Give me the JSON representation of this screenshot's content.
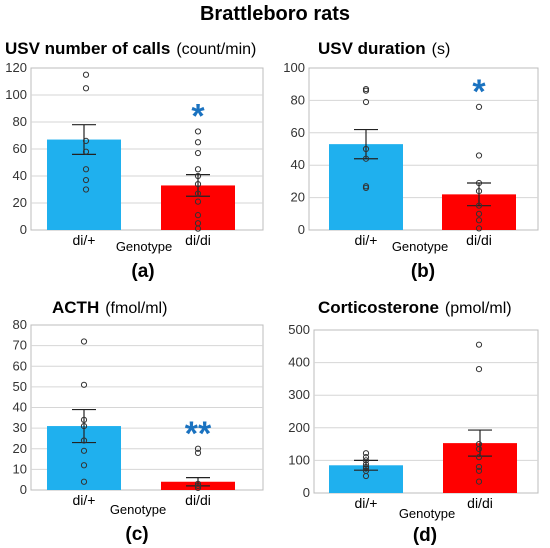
{
  "title": "Brattleboro rats",
  "colors": {
    "control": "#1fb0ee",
    "knockout": "#ff0000",
    "significance": "#1a72c0",
    "grid": "#d6d6d6"
  },
  "chart_data": [
    {
      "type": "bar",
      "panel": "(a)",
      "title": "USV number of calls",
      "unit": "(count/min)",
      "xlabel": "Genotype",
      "categories": [
        "di/+",
        "di/di"
      ],
      "values": [
        67,
        33
      ],
      "sem": [
        11,
        8
      ],
      "points": [
        [
          30,
          37,
          45,
          58,
          66,
          105,
          115
        ],
        [
          1,
          5,
          11,
          21,
          27,
          34,
          40,
          45,
          57,
          65,
          73
        ]
      ],
      "ylim": [
        0,
        120
      ],
      "yticks": [
        0,
        20,
        40,
        60,
        80,
        100,
        120
      ],
      "significance": [
        "",
        "*"
      ],
      "grid": true
    },
    {
      "type": "bar",
      "panel": "(b)",
      "title": "USV duration",
      "unit": "(s)",
      "xlabel": "Genotype",
      "categories": [
        "di/+",
        "di/di"
      ],
      "values": [
        53,
        22
      ],
      "sem": [
        9,
        7
      ],
      "points": [
        [
          26,
          27,
          44,
          50,
          79,
          86,
          87
        ],
        [
          1,
          6,
          10,
          15,
          24,
          29,
          46,
          76
        ]
      ],
      "ylim": [
        0,
        100
      ],
      "yticks": [
        0,
        20,
        40,
        60,
        80,
        100
      ],
      "significance": [
        "",
        "*"
      ],
      "grid": true
    },
    {
      "type": "bar",
      "panel": "(c)",
      "title": "ACTH",
      "unit": "(fmol/ml)",
      "xlabel": "Genotype",
      "categories": [
        "di/+",
        "di/di"
      ],
      "values": [
        31,
        4
      ],
      "sem": [
        8,
        2
      ],
      "points": [
        [
          4,
          12,
          19,
          24,
          31,
          34,
          51,
          72
        ],
        [
          1,
          2,
          3,
          18,
          20
        ]
      ],
      "ylim": [
        0,
        80
      ],
      "yticks": [
        0,
        10,
        20,
        30,
        40,
        50,
        60,
        70,
        80
      ],
      "significance": [
        "",
        "**"
      ],
      "grid": true
    },
    {
      "type": "bar",
      "panel": "(d)",
      "title": "Corticosterone",
      "unit": "(pmol/ml)",
      "xlabel": "Genotype",
      "categories": [
        "di/+",
        "di/di"
      ],
      "values": [
        85,
        153
      ],
      "sem": [
        15,
        40
      ],
      "points": [
        [
          52,
          68,
          75,
          80,
          88,
          100,
          110,
          122
        ],
        [
          35,
          68,
          80,
          110,
          135,
          150,
          380,
          455
        ]
      ],
      "ylim": [
        0,
        500
      ],
      "yticks": [
        0,
        100,
        200,
        300,
        400,
        500
      ],
      "significance": [
        "",
        ""
      ],
      "grid": true
    }
  ]
}
